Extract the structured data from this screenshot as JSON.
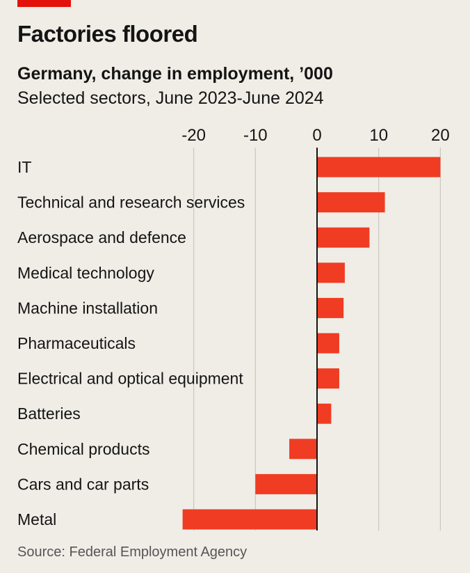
{
  "header": {
    "title": "Factories floored",
    "subtitle": "Germany, change in employment, ’000",
    "description": "Selected sectors, June 2023-June 2024"
  },
  "source": "Source: Federal Employment Agency",
  "colors": {
    "bar": "#f03c23",
    "accent": "#e3120b",
    "grid": "#c9c7bf",
    "zero_line": "#141414"
  },
  "chart_data": {
    "type": "bar",
    "orientation": "horizontal",
    "categories": [
      "IT",
      "Technical and research services",
      "Aerospace and defence",
      "Medical technology",
      "Machine installation",
      "Pharmaceuticals",
      "Electrical and optical equipment",
      "Batteries",
      "Chemical products",
      "Cars and car parts",
      "Metal"
    ],
    "values": [
      20,
      11,
      8.5,
      4.5,
      4.3,
      3.6,
      3.6,
      2.3,
      -4.5,
      -10,
      -21.8
    ],
    "xlim": [
      -22,
      22
    ],
    "xticks": [
      -20,
      -10,
      0,
      10,
      20
    ],
    "xtick_labels": [
      "-20",
      "-10",
      "0",
      "10",
      "20"
    ],
    "grid": true
  }
}
